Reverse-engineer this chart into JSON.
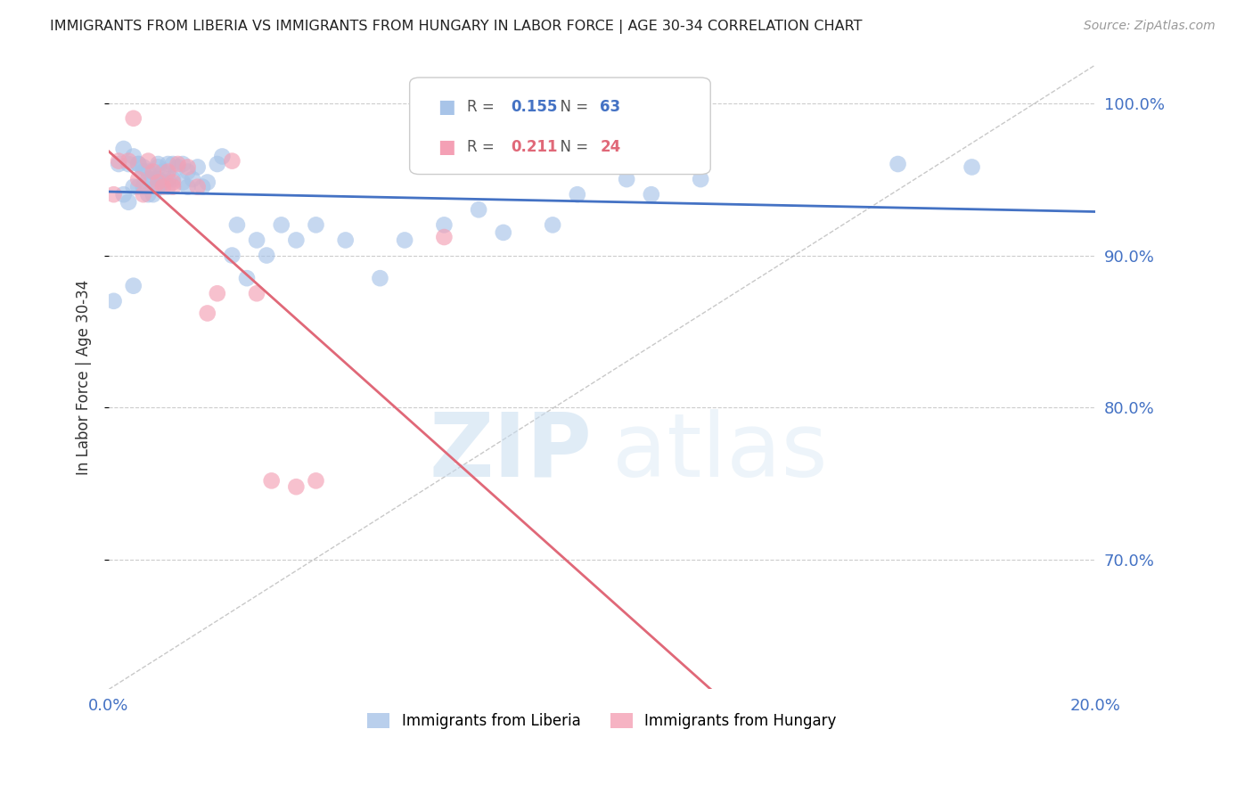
{
  "title": "IMMIGRANTS FROM LIBERIA VS IMMIGRANTS FROM HUNGARY IN LABOR FORCE | AGE 30-34 CORRELATION CHART",
  "source": "Source: ZipAtlas.com",
  "ylabel": "In Labor Force | Age 30-34",
  "x_min": 0.0,
  "x_max": 0.2,
  "y_min": 0.615,
  "y_max": 1.025,
  "y_ticks": [
    0.7,
    0.8,
    0.9,
    1.0
  ],
  "y_tick_labels": [
    "70.0%",
    "80.0%",
    "90.0%",
    "100.0%"
  ],
  "x_ticks": [
    0.0,
    0.04,
    0.08,
    0.12,
    0.16,
    0.2
  ],
  "x_tick_labels": [
    "0.0%",
    "",
    "",
    "",
    "",
    "20.0%"
  ],
  "liberia_R": 0.155,
  "liberia_N": 63,
  "hungary_R": 0.211,
  "hungary_N": 24,
  "liberia_color": "#a8c4e8",
  "hungary_color": "#f4a0b5",
  "liberia_line_color": "#4472c4",
  "hungary_line_color": "#e06878",
  "background_color": "#ffffff",
  "grid_color": "#cccccc",
  "watermark_zip": "ZIP",
  "watermark_atlas": "atlas",
  "liberia_x": [
    0.001,
    0.002,
    0.003,
    0.003,
    0.004,
    0.004,
    0.005,
    0.005,
    0.005,
    0.006,
    0.006,
    0.006,
    0.007,
    0.007,
    0.007,
    0.008,
    0.008,
    0.008,
    0.009,
    0.009,
    0.01,
    0.01,
    0.01,
    0.01,
    0.011,
    0.011,
    0.012,
    0.012,
    0.012,
    0.013,
    0.013,
    0.014,
    0.015,
    0.015,
    0.016,
    0.016,
    0.017,
    0.018,
    0.019,
    0.02,
    0.022,
    0.023,
    0.025,
    0.026,
    0.028,
    0.03,
    0.032,
    0.035,
    0.038,
    0.042,
    0.048,
    0.055,
    0.06,
    0.068,
    0.075,
    0.08,
    0.09,
    0.095,
    0.105,
    0.11,
    0.12,
    0.16,
    0.175
  ],
  "liberia_y": [
    0.87,
    0.96,
    0.94,
    0.97,
    0.935,
    0.96,
    0.965,
    0.945,
    0.88,
    0.96,
    0.96,
    0.945,
    0.955,
    0.958,
    0.945,
    0.955,
    0.95,
    0.94,
    0.95,
    0.94,
    0.95,
    0.958,
    0.945,
    0.96,
    0.955,
    0.948,
    0.95,
    0.96,
    0.945,
    0.96,
    0.95,
    0.958,
    0.96,
    0.948,
    0.955,
    0.945,
    0.95,
    0.958,
    0.945,
    0.948,
    0.96,
    0.965,
    0.9,
    0.92,
    0.885,
    0.91,
    0.9,
    0.92,
    0.91,
    0.92,
    0.91,
    0.885,
    0.91,
    0.92,
    0.93,
    0.915,
    0.92,
    0.94,
    0.95,
    0.94,
    0.95,
    0.96,
    0.958
  ],
  "hungary_x": [
    0.001,
    0.002,
    0.004,
    0.005,
    0.006,
    0.007,
    0.008,
    0.009,
    0.01,
    0.011,
    0.012,
    0.013,
    0.013,
    0.014,
    0.016,
    0.018,
    0.02,
    0.022,
    0.025,
    0.03,
    0.033,
    0.038,
    0.042,
    0.068
  ],
  "hungary_y": [
    0.94,
    0.962,
    0.962,
    0.99,
    0.95,
    0.94,
    0.962,
    0.955,
    0.948,
    0.945,
    0.955,
    0.948,
    0.945,
    0.96,
    0.958,
    0.945,
    0.862,
    0.875,
    0.962,
    0.875,
    0.752,
    0.748,
    0.752,
    0.912
  ]
}
